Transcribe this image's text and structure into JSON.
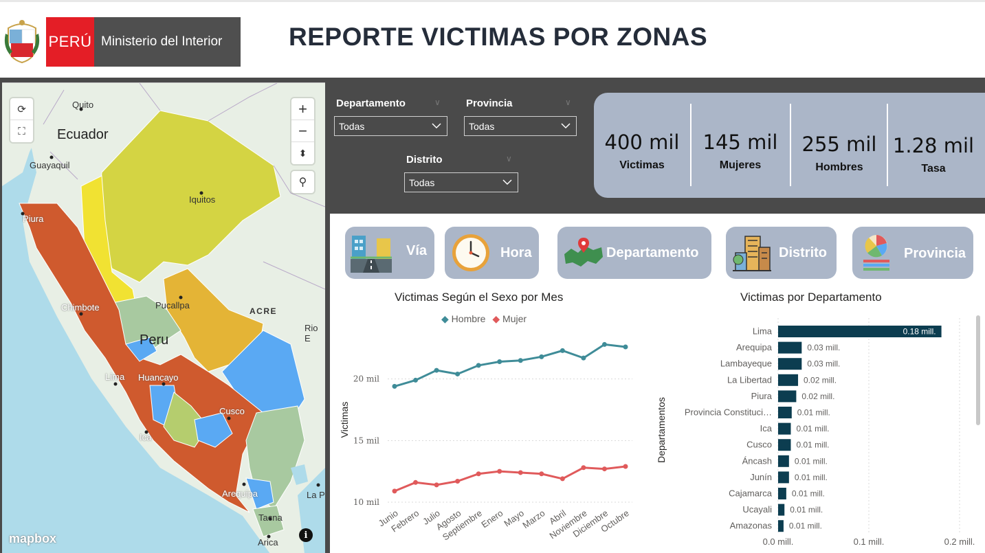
{
  "header": {
    "peru_label": "PERÚ",
    "ministry_label": "Ministerio del Interior",
    "title": "REPORTE VICTIMAS POR ZONAS"
  },
  "map": {
    "places": {
      "quito": "Quito",
      "ecuador": "Ecuador",
      "guayaquil": "Guayaquil",
      "iquitos": "Iquitos",
      "piura": "Piura",
      "chimbote": "Chimbote",
      "pucallpa": "Pucallpa",
      "acre": "ACRE",
      "rio": "Rio E",
      "peru": "Peru",
      "lima": "Lima",
      "huancayo": "Huancayo",
      "cusco": "Cusco",
      "ica": "Ica",
      "arequipa": "Arequipa",
      "tacna": "Tacna",
      "arica": "Arica",
      "lapaz": "La P"
    },
    "attribution": "mapbox",
    "region_colors": {
      "high": "#cf5a2e",
      "mid_high": "#e4b436",
      "mid": "#d4d443",
      "low": "#b5cd6e",
      "lowest": "#8fc0e6",
      "blue": "#5aa9f3",
      "green": "#a8c9a0"
    }
  },
  "filters": {
    "departamento": {
      "label": "Departamento",
      "value": "Todas"
    },
    "provincia": {
      "label": "Provincia",
      "value": "Todas"
    },
    "distrito": {
      "label": "Distrito",
      "value": "Todas"
    }
  },
  "kpis": [
    {
      "value": "400 mil",
      "label": "Victimas"
    },
    {
      "value": "145 mil",
      "label": "Mujeres"
    },
    {
      "value": "255 mil",
      "label": "Hombres"
    },
    {
      "value": "1.28 mil",
      "label": "Tasa"
    }
  ],
  "nav": [
    {
      "label": "Vía",
      "icon": "road-icon"
    },
    {
      "label": "Hora",
      "icon": "clock-icon"
    },
    {
      "label": "Departamento",
      "icon": "map-pin-icon"
    },
    {
      "label": "Distrito",
      "icon": "buildings-icon"
    },
    {
      "label": "Provincia",
      "icon": "pie-list-icon"
    }
  ],
  "chart_data": [
    {
      "type": "line",
      "title": "Victimas Según el Sexo por Mes",
      "xlabel": "",
      "ylabel": "Victimas",
      "categories": [
        "Junio",
        "Febrero",
        "Julio",
        "Agosto",
        "Septiembre",
        "Enero",
        "Mayo",
        "Marzo",
        "Abril",
        "Noviembre",
        "Diciembre",
        "Octubre"
      ],
      "yticks": [
        "10 mil",
        "15 mil",
        "20 mil"
      ],
      "ylim": [
        10000,
        22600
      ],
      "legend": "top",
      "series": [
        {
          "name": "Hombre",
          "color": "#3f8c98",
          "values": [
            19400,
            19900,
            20700,
            20400,
            21100,
            21400,
            21500,
            21800,
            22300,
            21700,
            22800,
            22600
          ]
        },
        {
          "name": "Mujer",
          "color": "#e05a5b",
          "values": [
            10900,
            11600,
            11400,
            11700,
            12300,
            12500,
            12400,
            12300,
            11900,
            12800,
            12700,
            12900
          ]
        }
      ]
    },
    {
      "type": "bar",
      "orientation": "horizontal",
      "title": "Victimas por Departamento",
      "ylabel": "Departamentos",
      "xticks": [
        "0.0 mill.",
        "0.1 mill.",
        "0.2 mill."
      ],
      "xlim": [
        0,
        0.2
      ],
      "color": "#0c3d50",
      "categories": [
        "Lima",
        "Arequipa",
        "Lambayeque",
        "La Libertad",
        "Piura",
        "Provincia Constituci…",
        "Ica",
        "Cusco",
        "Áncash",
        "Junín",
        "Cajamarca",
        "Ucayali",
        "Amazonas"
      ],
      "values": [
        0.18,
        0.026,
        0.026,
        0.022,
        0.02,
        0.015,
        0.014,
        0.014,
        0.012,
        0.012,
        0.009,
        0.007,
        0.006
      ],
      "data_labels": [
        "0.18 mill.",
        "0.03 mill.",
        "0.03 mill.",
        "0.02 mill.",
        "0.02 mill.",
        "0.01 mill.",
        "0.01 mill.",
        "0.01 mill.",
        "0.01 mill.",
        "0.01 mill.",
        "0.01 mill.",
        "0.01 mill.",
        "0.01 mill."
      ]
    }
  ]
}
